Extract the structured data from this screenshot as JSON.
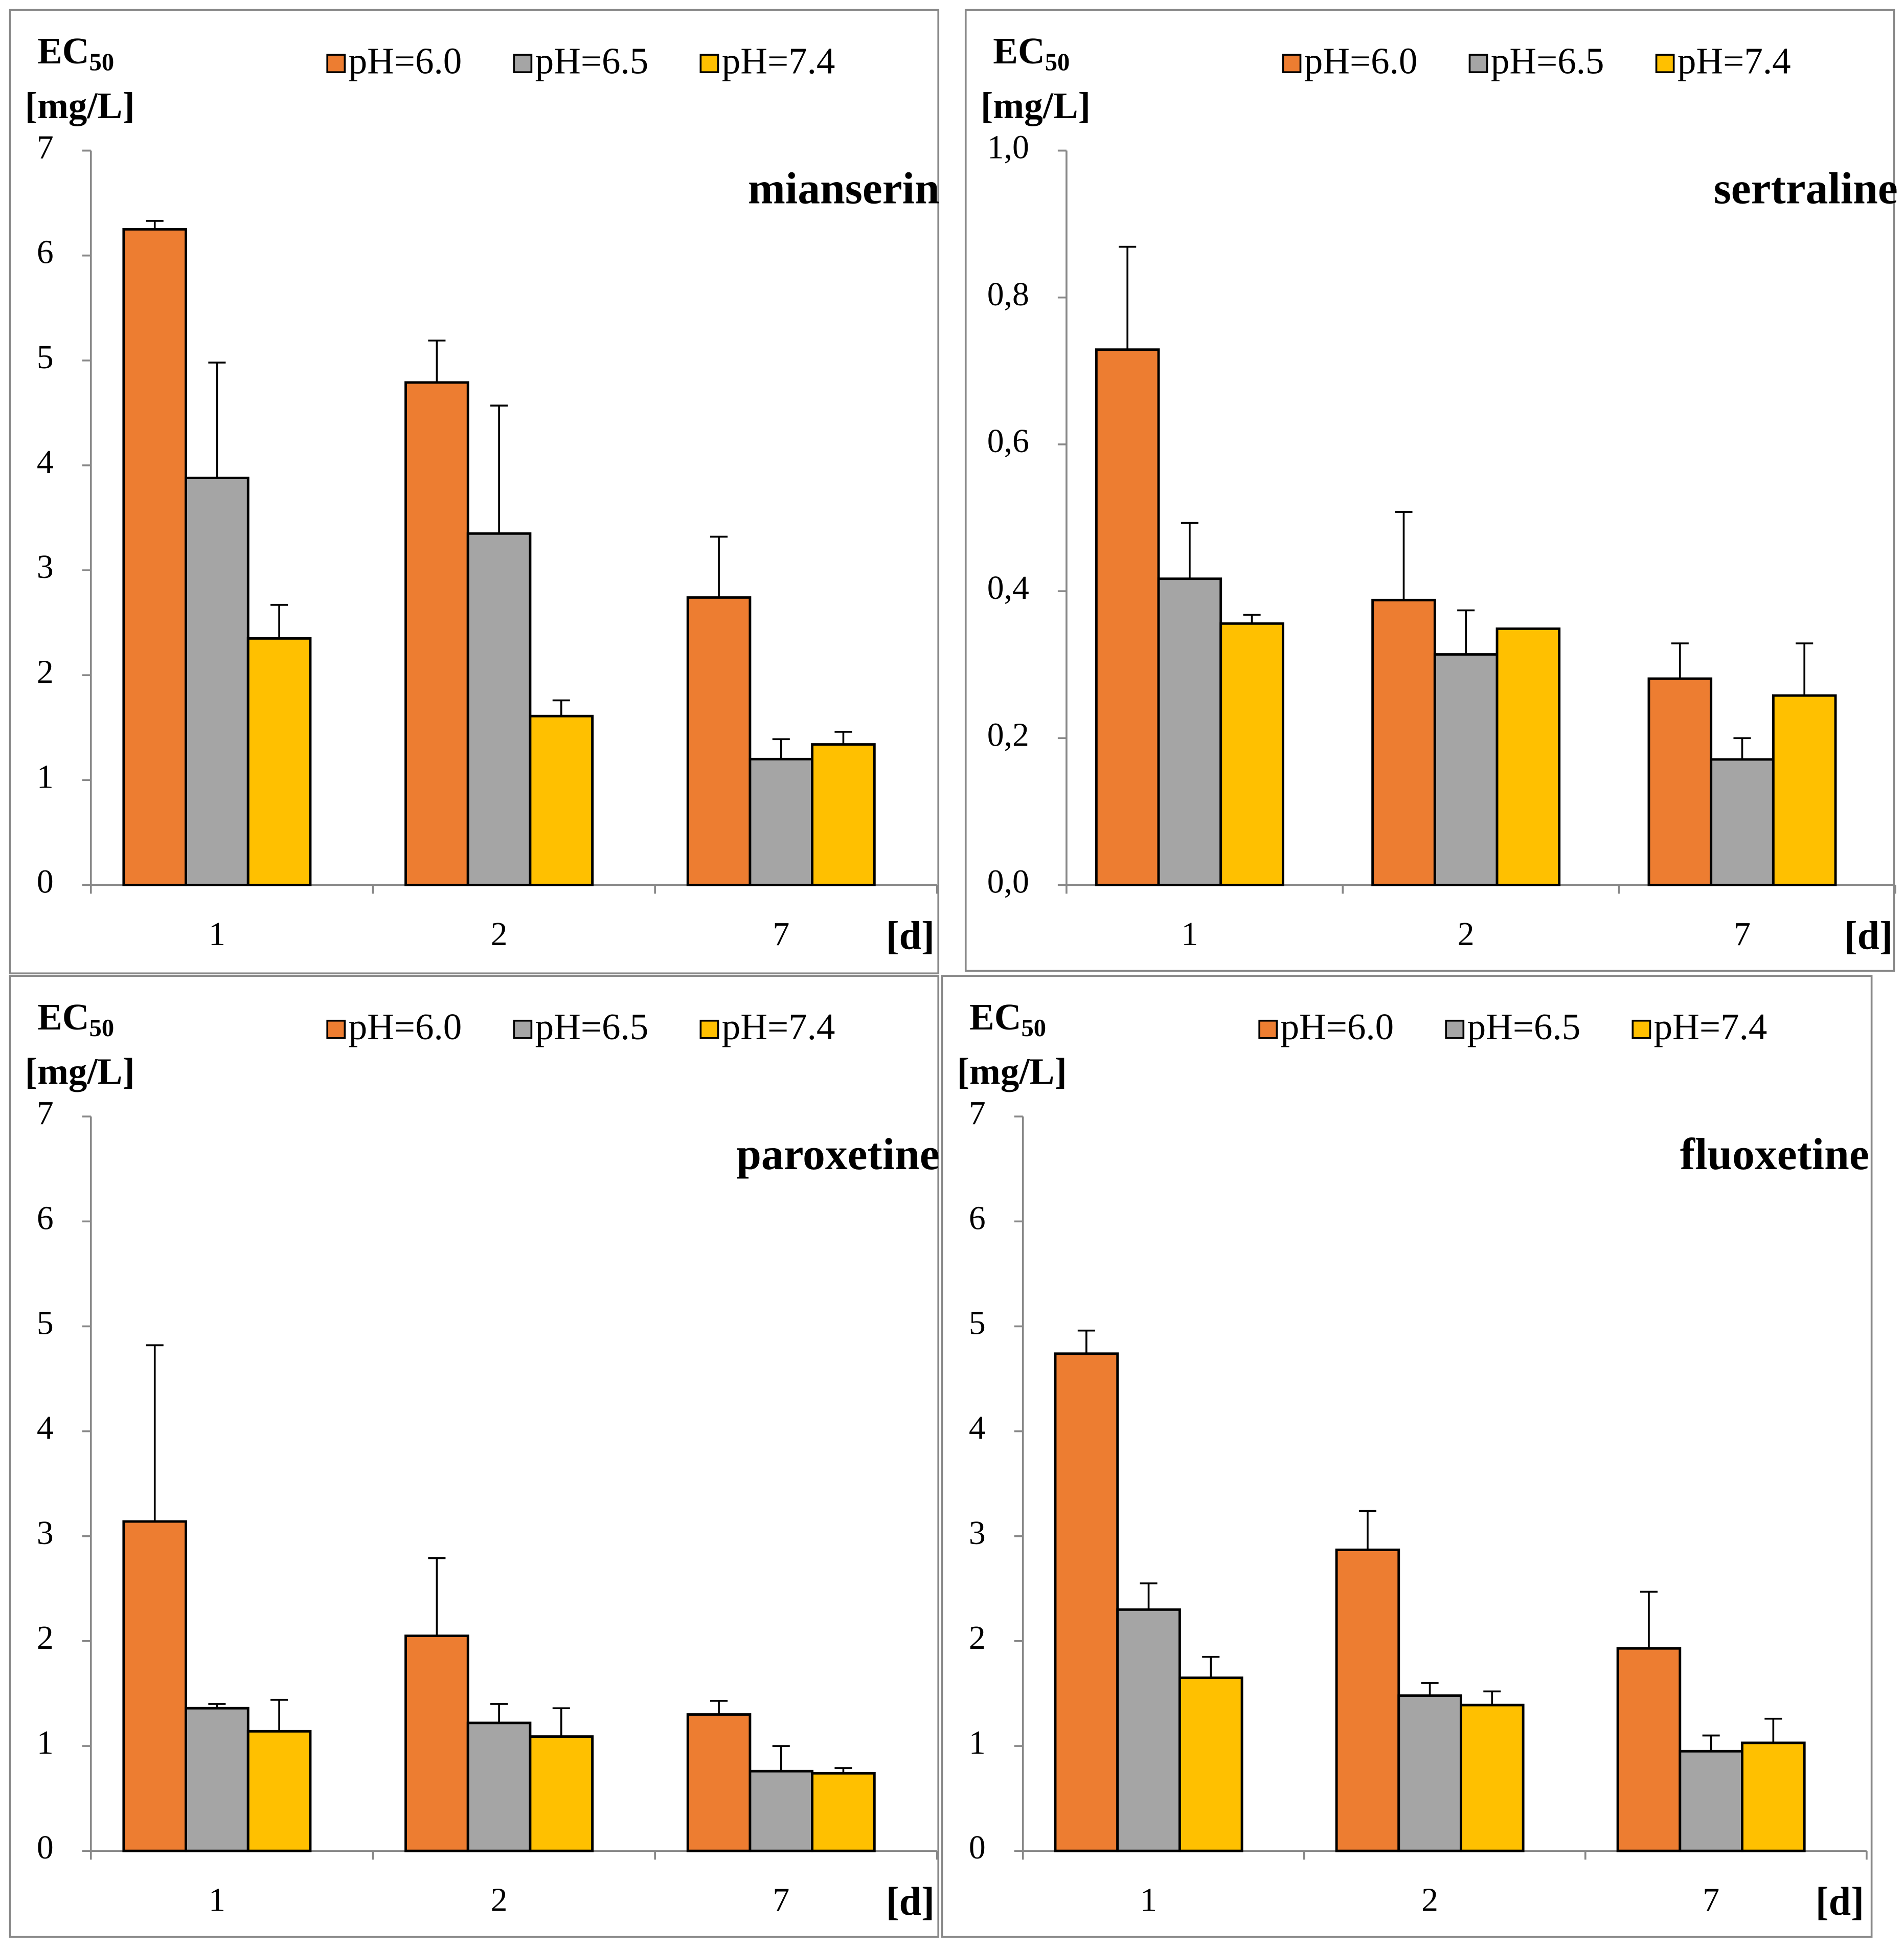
{
  "chart_data": [
    {
      "type": "bar",
      "title": "mianserin",
      "ylabel": {
        "text": "EC",
        "subscript": "50",
        "unit": "[mg/L]"
      },
      "xlabel": "[d]",
      "categories": [
        "1",
        "2",
        "7"
      ],
      "ylim": [
        0,
        7
      ],
      "yticks": [
        0,
        1,
        2,
        3,
        4,
        5,
        6,
        7
      ],
      "series": [
        {
          "name": "pH=6.0",
          "color": "#ed7d31",
          "values": [
            6.25,
            4.79,
            2.74
          ],
          "errors": [
            0.08,
            0.4,
            0.58
          ]
        },
        {
          "name": "pH=6.5",
          "color": "#a5a5a5",
          "values": [
            3.88,
            3.35,
            1.2
          ],
          "errors": [
            1.1,
            1.22,
            0.19
          ]
        },
        {
          "name": "pH=7.4",
          "color": "#ffc000",
          "values": [
            2.35,
            1.61,
            1.34
          ],
          "errors": [
            0.32,
            0.15,
            0.12
          ]
        }
      ]
    },
    {
      "type": "bar",
      "title": "sertraline",
      "ylabel": {
        "text": "EC",
        "subscript": "50",
        "unit": "[mg/L]"
      },
      "xlabel": "[d]",
      "categories": [
        "1",
        "2",
        "7"
      ],
      "ylim": [
        0,
        1
      ],
      "yticks": [
        {
          "value": 0,
          "label": "0,0"
        },
        {
          "value": 0.2,
          "label": "0,2"
        },
        {
          "value": 0.4,
          "label": "0,4"
        },
        {
          "value": 0.6,
          "label": "0,6"
        },
        {
          "value": 0.8,
          "label": "0,8"
        },
        {
          "value": 1,
          "label": "1,0"
        }
      ],
      "series": [
        {
          "name": "pH=6.0",
          "color": "#ed7d31",
          "values": [
            0.729,
            0.388,
            0.281
          ],
          "errors": [
            0.14,
            0.12,
            0.048
          ]
        },
        {
          "name": "pH=6.5",
          "color": "#a5a5a5",
          "values": [
            0.417,
            0.314,
            0.171
          ],
          "errors": [
            0.076,
            0.06,
            0.029
          ]
        },
        {
          "name": "pH=7.4",
          "color": "#ffc000",
          "values": [
            0.356,
            0.349,
            0.258
          ],
          "errors": [
            0.012,
            0,
            0.071
          ]
        }
      ]
    },
    {
      "type": "bar",
      "title": "paroxetine",
      "ylabel": {
        "text": "EC",
        "subscript": "50",
        "unit": "[mg/L]"
      },
      "xlabel": "[d]",
      "categories": [
        "1",
        "2",
        "7"
      ],
      "ylim": [
        0,
        7
      ],
      "yticks": [
        0,
        1,
        2,
        3,
        4,
        5,
        6,
        7
      ],
      "series": [
        {
          "name": "pH=6.0",
          "color": "#ed7d31",
          "values": [
            3.14,
            2.05,
            1.3
          ],
          "errors": [
            1.68,
            0.74,
            0.13
          ]
        },
        {
          "name": "pH=6.5",
          "color": "#a5a5a5",
          "values": [
            1.36,
            1.22,
            0.76
          ],
          "errors": [
            0.04,
            0.18,
            0.24
          ]
        },
        {
          "name": "pH=7.4",
          "color": "#ffc000",
          "values": [
            1.14,
            1.09,
            0.74
          ],
          "errors": [
            0.3,
            0.27,
            0.05
          ]
        }
      ]
    },
    {
      "type": "bar",
      "title": "fluoxetine",
      "ylabel": {
        "text": "EC",
        "subscript": "50",
        "unit": "[mg/L]"
      },
      "xlabel": "[d]",
      "categories": [
        "1",
        "2",
        "7"
      ],
      "ylim": [
        0,
        7
      ],
      "yticks": [
        0,
        1,
        2,
        3,
        4,
        5,
        6,
        7
      ],
      "series": [
        {
          "name": "pH=6.0",
          "color": "#ed7d31",
          "values": [
            4.74,
            2.87,
            1.93
          ],
          "errors": [
            0.22,
            0.37,
            0.54
          ]
        },
        {
          "name": "pH=6.5",
          "color": "#a5a5a5",
          "values": [
            2.3,
            1.48,
            0.95
          ],
          "errors": [
            0.25,
            0.12,
            0.15
          ]
        },
        {
          "name": "pH=7.4",
          "color": "#ffc000",
          "values": [
            1.65,
            1.39,
            1.03
          ],
          "errors": [
            0.2,
            0.13,
            0.23
          ]
        }
      ]
    }
  ]
}
